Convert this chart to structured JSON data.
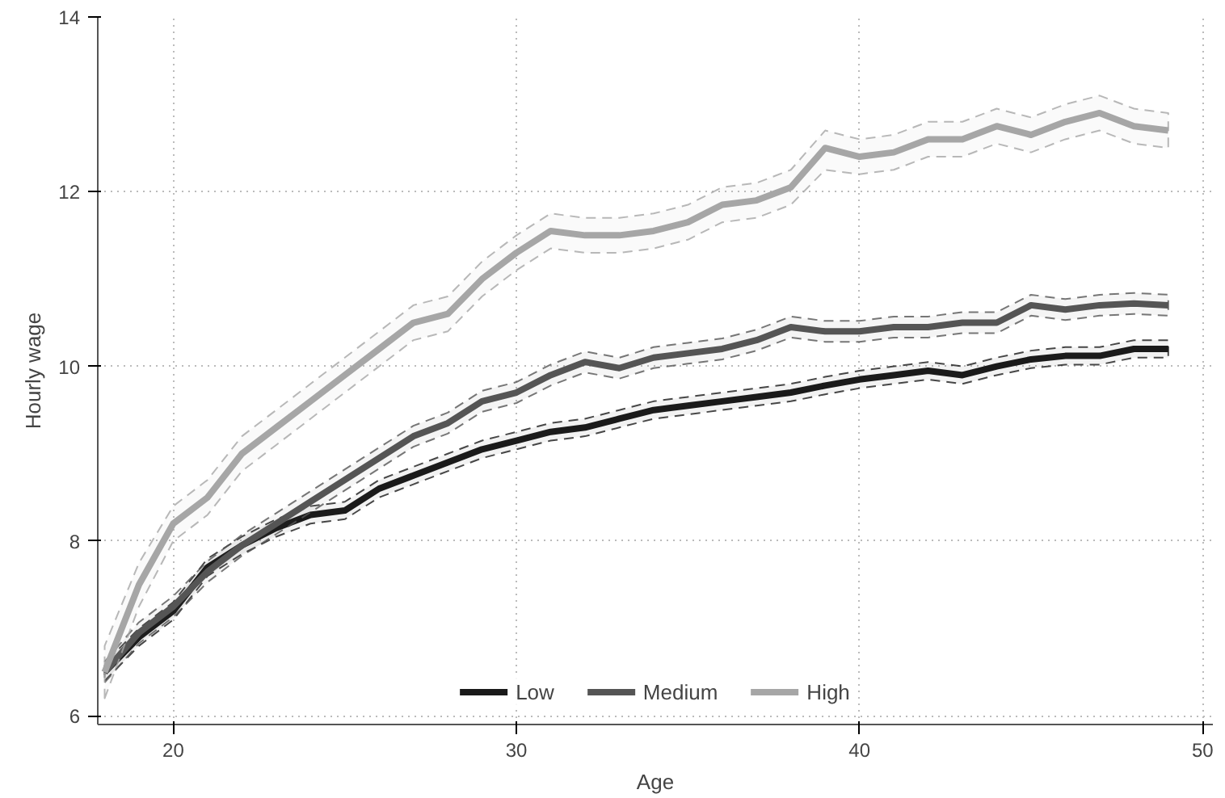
{
  "chart_data": {
    "type": "line",
    "xlabel": "Age",
    "ylabel": "Hourly wage",
    "x": [
      18,
      19,
      20,
      21,
      22,
      23,
      24,
      25,
      26,
      27,
      28,
      29,
      30,
      31,
      32,
      33,
      34,
      35,
      36,
      37,
      38,
      39,
      40,
      41,
      42,
      43,
      44,
      45,
      46,
      47,
      48,
      49
    ],
    "xlim": [
      17.8,
      50.3
    ],
    "ylim": [
      5.9,
      14
    ],
    "xticks": [
      20,
      30,
      40,
      50
    ],
    "yticks": [
      6,
      8,
      10,
      12,
      14
    ],
    "grid": true,
    "legend": "bottom",
    "line_style": "solid",
    "marker": "none",
    "series": [
      {
        "name": "Low",
        "color": "#1a1a1a",
        "values": [
          6.5,
          6.9,
          7.2,
          7.7,
          7.95,
          8.15,
          8.3,
          8.35,
          8.6,
          8.75,
          8.9,
          9.05,
          9.15,
          9.25,
          9.3,
          9.4,
          9.5,
          9.55,
          9.6,
          9.65,
          9.7,
          9.78,
          9.85,
          9.9,
          9.95,
          9.9,
          10.0,
          10.08,
          10.12,
          10.12,
          10.2,
          10.2
        ],
        "lower": [
          6.4,
          6.8,
          7.1,
          7.6,
          7.85,
          8.05,
          8.2,
          8.25,
          8.5,
          8.65,
          8.8,
          8.95,
          9.05,
          9.15,
          9.2,
          9.3,
          9.4,
          9.45,
          9.5,
          9.55,
          9.6,
          9.68,
          9.75,
          9.8,
          9.85,
          9.8,
          9.9,
          9.98,
          10.02,
          10.02,
          10.1,
          10.1
        ],
        "upper": [
          6.6,
          7.0,
          7.3,
          7.8,
          8.05,
          8.25,
          8.4,
          8.45,
          8.7,
          8.85,
          9.0,
          9.15,
          9.25,
          9.35,
          9.4,
          9.5,
          9.6,
          9.65,
          9.7,
          9.75,
          9.8,
          9.88,
          9.95,
          10.0,
          10.05,
          10.0,
          10.1,
          10.18,
          10.22,
          10.22,
          10.3,
          10.3
        ]
      },
      {
        "name": "Medium",
        "color": "#555555",
        "values": [
          6.5,
          6.95,
          7.25,
          7.65,
          7.95,
          8.2,
          8.45,
          8.7,
          8.95,
          9.2,
          9.35,
          9.6,
          9.7,
          9.9,
          10.05,
          9.98,
          10.1,
          10.15,
          10.2,
          10.3,
          10.45,
          10.4,
          10.4,
          10.45,
          10.45,
          10.5,
          10.5,
          10.7,
          10.65,
          10.7,
          10.72,
          10.7
        ],
        "lower": [
          6.38,
          6.83,
          7.13,
          7.53,
          7.83,
          8.08,
          8.33,
          8.58,
          8.83,
          9.08,
          9.23,
          9.48,
          9.58,
          9.78,
          9.93,
          9.86,
          9.98,
          10.03,
          10.08,
          10.18,
          10.33,
          10.28,
          10.28,
          10.33,
          10.33,
          10.38,
          10.38,
          10.58,
          10.53,
          10.58,
          10.6,
          10.58
        ],
        "upper": [
          6.62,
          7.07,
          7.37,
          7.77,
          8.07,
          8.32,
          8.57,
          8.82,
          9.07,
          9.32,
          9.47,
          9.72,
          9.82,
          10.02,
          10.17,
          10.1,
          10.22,
          10.27,
          10.32,
          10.42,
          10.57,
          10.52,
          10.52,
          10.57,
          10.57,
          10.62,
          10.62,
          10.82,
          10.77,
          10.82,
          10.84,
          10.82
        ]
      },
      {
        "name": "High",
        "color": "#a6a6a6",
        "values": [
          6.5,
          7.5,
          8.2,
          8.5,
          9.0,
          9.3,
          9.6,
          9.9,
          10.2,
          10.5,
          10.6,
          11.0,
          11.3,
          11.55,
          11.5,
          11.5,
          11.55,
          11.65,
          11.85,
          11.9,
          12.05,
          12.5,
          12.4,
          12.45,
          12.6,
          12.6,
          12.75,
          12.65,
          12.8,
          12.9,
          12.75,
          12.7
        ],
        "lower": [
          6.2,
          7.25,
          8.0,
          8.3,
          8.8,
          9.1,
          9.4,
          9.7,
          10.0,
          10.3,
          10.4,
          10.8,
          11.1,
          11.35,
          11.3,
          11.3,
          11.35,
          11.45,
          11.65,
          11.7,
          11.85,
          12.25,
          12.2,
          12.25,
          12.4,
          12.4,
          12.55,
          12.45,
          12.6,
          12.7,
          12.55,
          12.5
        ],
        "upper": [
          6.8,
          7.75,
          8.4,
          8.7,
          9.2,
          9.5,
          9.8,
          10.1,
          10.4,
          10.7,
          10.8,
          11.2,
          11.5,
          11.75,
          11.7,
          11.7,
          11.75,
          11.85,
          12.05,
          12.1,
          12.25,
          12.7,
          12.6,
          12.65,
          12.8,
          12.8,
          12.95,
          12.85,
          13.0,
          13.1,
          12.95,
          12.9
        ]
      }
    ]
  }
}
